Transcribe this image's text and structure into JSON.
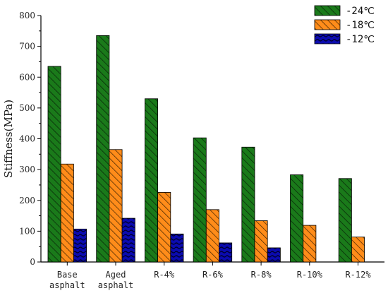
{
  "chart_data": {
    "type": "bar",
    "title": "",
    "xlabel": "",
    "ylabel": "Stiffness(MPa)",
    "ylim": [
      0,
      800
    ],
    "yticks": [
      0,
      100,
      200,
      300,
      400,
      500,
      600,
      700,
      800
    ],
    "grid": false,
    "legend_position": "top-right",
    "categories": [
      [
        "Base",
        "asphalt"
      ],
      [
        "Aged",
        "asphalt"
      ],
      [
        "R-4%"
      ],
      [
        "R-6%"
      ],
      [
        "R-8%"
      ],
      [
        "R-10%"
      ],
      [
        "R-12%"
      ]
    ],
    "series": [
      {
        "name": "-24℃",
        "color": "#1a7a1a",
        "pattern": "diagonal-hatch",
        "values": [
          635,
          735,
          530,
          403,
          373,
          283,
          271
        ]
      },
      {
        "name": "-18℃",
        "color": "#ff8c1a",
        "pattern": "diagonal-hatch",
        "values": [
          318,
          365,
          226,
          170,
          134,
          119,
          81
        ]
      },
      {
        "name": "-12℃",
        "color": "#0b0bb0",
        "pattern": "wave",
        "values": [
          107,
          142,
          91,
          62,
          46,
          null,
          null
        ]
      }
    ]
  }
}
